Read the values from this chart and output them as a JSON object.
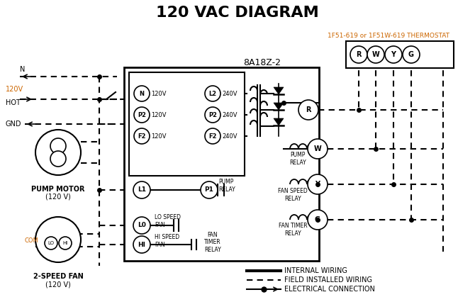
{
  "title": "120 VAC DIAGRAM",
  "title_color": "#000000",
  "title_fontsize": 16,
  "background_color": "#ffffff",
  "thermostat_label": "1F51-619 or 1F51W-619 THERMOSTAT",
  "thermostat_label_color": "#cc6600",
  "module_label": "8A18Z-2",
  "legend_items": [
    {
      "label": "INTERNAL WIRING",
      "style": "solid"
    },
    {
      "label": "FIELD INSTALLED WIRING",
      "style": "dashed"
    },
    {
      "label": "ELECTRICAL CONNECTION",
      "style": "dot_arrow"
    }
  ]
}
